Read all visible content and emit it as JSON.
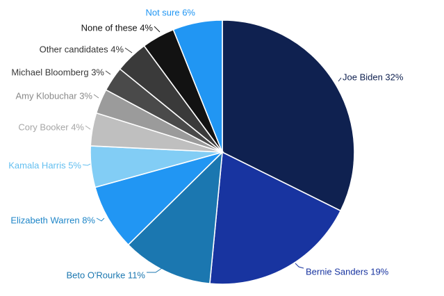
{
  "chart_data": {
    "type": "pie",
    "slices": [
      {
        "label": "Joe Biden 32%",
        "value": 32,
        "color": "#0f2150",
        "label_color": "#0f2150"
      },
      {
        "label": "Bernie Sanders 19%",
        "value": 19,
        "color": "#1834a0",
        "label_color": "#1834a0"
      },
      {
        "label": "Beto O'Rourke 11%",
        "value": 11,
        "color": "#1b77b0",
        "label_color": "#1b77b0"
      },
      {
        "label": "Elizabeth Warren 8%",
        "value": 8,
        "color": "#2196f3",
        "label_color": "#1f86c8"
      },
      {
        "label": "Kamala Harris 5%",
        "value": 5,
        "color": "#82cdf5",
        "label_color": "#63bff0"
      },
      {
        "label": "Cory Booker 4%",
        "value": 4,
        "color": "#bfbfbf",
        "label_color": "#a6a6a6"
      },
      {
        "label": "Amy Klobuchar 3%",
        "value": 3,
        "color": "#9b9b9b",
        "label_color": "#8a8a8a"
      },
      {
        "label": "Michael Bloomberg 3%",
        "value": 3,
        "color": "#4a4a4a",
        "label_color": "#3a3a3a"
      },
      {
        "label": "Other candidates 4%",
        "value": 4,
        "color": "#3a3a3a",
        "label_color": "#333333"
      },
      {
        "label": "None of these 4%",
        "value": 4,
        "color": "#121212",
        "label_color": "#111111"
      },
      {
        "label": "Not sure 6%",
        "value": 6,
        "color": "#2196f3",
        "label_color": "#2196f3"
      }
    ]
  }
}
